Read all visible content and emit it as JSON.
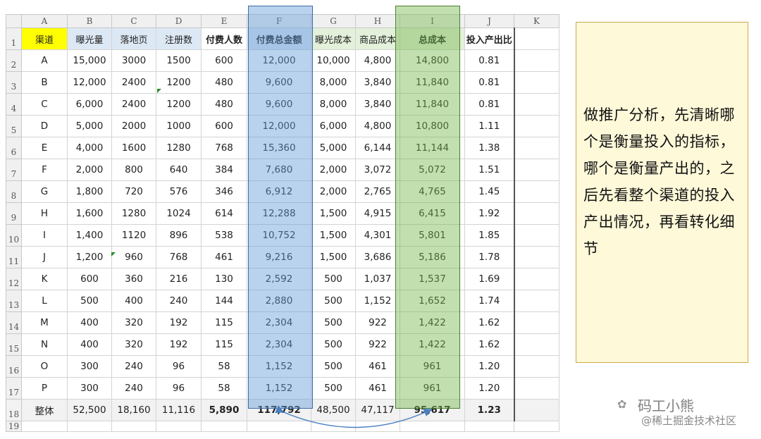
{
  "columns": [
    "A",
    "B",
    "C",
    "D",
    "E",
    "F",
    "G",
    "H",
    "I",
    "J",
    "K"
  ],
  "headers": [
    "渠道",
    "曝光量",
    "落地页",
    "注册数",
    "付费人数",
    "付费总金额",
    "曝光成本",
    "商品成本",
    "总成本",
    "投入产出比"
  ],
  "rows": [
    {
      "row": "2",
      "cells": [
        "A",
        "15,000",
        "3000",
        "1500",
        "600",
        "12,000",
        "10,000",
        "4,800",
        "14,800",
        "0.81"
      ]
    },
    {
      "row": "3",
      "cells": [
        "B",
        "12,000",
        "2400",
        "1200",
        "480",
        "9,600",
        "8,000",
        "3,840",
        "11,840",
        "0.81"
      ]
    },
    {
      "row": "4",
      "cells": [
        "C",
        "6,000",
        "2400",
        "1200",
        "480",
        "9,600",
        "8,000",
        "3,840",
        "11,840",
        "0.81"
      ]
    },
    {
      "row": "5",
      "cells": [
        "D",
        "5,000",
        "2000",
        "1000",
        "600",
        "12,000",
        "6,000",
        "4,800",
        "10,800",
        "1.11"
      ]
    },
    {
      "row": "6",
      "cells": [
        "E",
        "4,000",
        "1600",
        "1280",
        "768",
        "15,360",
        "5,000",
        "6,144",
        "11,144",
        "1.38"
      ]
    },
    {
      "row": "7",
      "cells": [
        "F",
        "2,000",
        "800",
        "640",
        "384",
        "7,680",
        "2,000",
        "3,072",
        "5,072",
        "1.51"
      ]
    },
    {
      "row": "8",
      "cells": [
        "G",
        "1,800",
        "720",
        "576",
        "346",
        "6,912",
        "2,000",
        "2,765",
        "4,765",
        "1.45"
      ]
    },
    {
      "row": "9",
      "cells": [
        "H",
        "1,600",
        "1280",
        "1024",
        "614",
        "12,288",
        "1,500",
        "4,915",
        "6,415",
        "1.92"
      ]
    },
    {
      "row": "10",
      "cells": [
        "I",
        "1,400",
        "1120",
        "896",
        "538",
        "10,752",
        "1,500",
        "4,301",
        "5,801",
        "1.85"
      ]
    },
    {
      "row": "11",
      "cells": [
        "J",
        "1,200",
        "960",
        "768",
        "461",
        "9,216",
        "1,500",
        "3,686",
        "5,186",
        "1.78"
      ]
    },
    {
      "row": "12",
      "cells": [
        "K",
        "600",
        "360",
        "216",
        "130",
        "2,592",
        "500",
        "1,037",
        "1,537",
        "1.69"
      ]
    },
    {
      "row": "13",
      "cells": [
        "L",
        "500",
        "400",
        "240",
        "144",
        "2,880",
        "500",
        "1,152",
        "1,652",
        "1.74"
      ]
    },
    {
      "row": "14",
      "cells": [
        "M",
        "400",
        "320",
        "192",
        "115",
        "2,304",
        "500",
        "922",
        "1,422",
        "1.62"
      ]
    },
    {
      "row": "15",
      "cells": [
        "N",
        "400",
        "320",
        "192",
        "115",
        "2,304",
        "500",
        "922",
        "1,422",
        "1.62"
      ]
    },
    {
      "row": "16",
      "cells": [
        "O",
        "300",
        "240",
        "96",
        "58",
        "1,152",
        "500",
        "461",
        "961",
        "1.20"
      ]
    },
    {
      "row": "17",
      "cells": [
        "P",
        "300",
        "240",
        "96",
        "58",
        "1,152",
        "500",
        "461",
        "961",
        "1.20"
      ]
    }
  ],
  "total": {
    "row": "18",
    "cells": [
      "整体",
      "52,500",
      "18,160",
      "11,116",
      "5,890",
      "117,792",
      "48,500",
      "47,117",
      "95,617",
      "1.23"
    ]
  },
  "note": {
    "text": "做推广分析，先清晰哪个是衡量投入的指标，哪个是衡量产出的，之后先看整个渠道的投入产出情况，再看转化细节"
  },
  "watermark": {
    "line1": "码工小熊",
    "line2": "@稀土掘金技术社区"
  },
  "colors": {
    "header_yellow": "#ffff00",
    "header_blue": "#dde8f5",
    "header_green": "#e3f0da",
    "note_bg": "#fef9d9",
    "note_border": "#d0a64c",
    "highlight_blue": "#649bd7",
    "highlight_green": "#78b950"
  }
}
